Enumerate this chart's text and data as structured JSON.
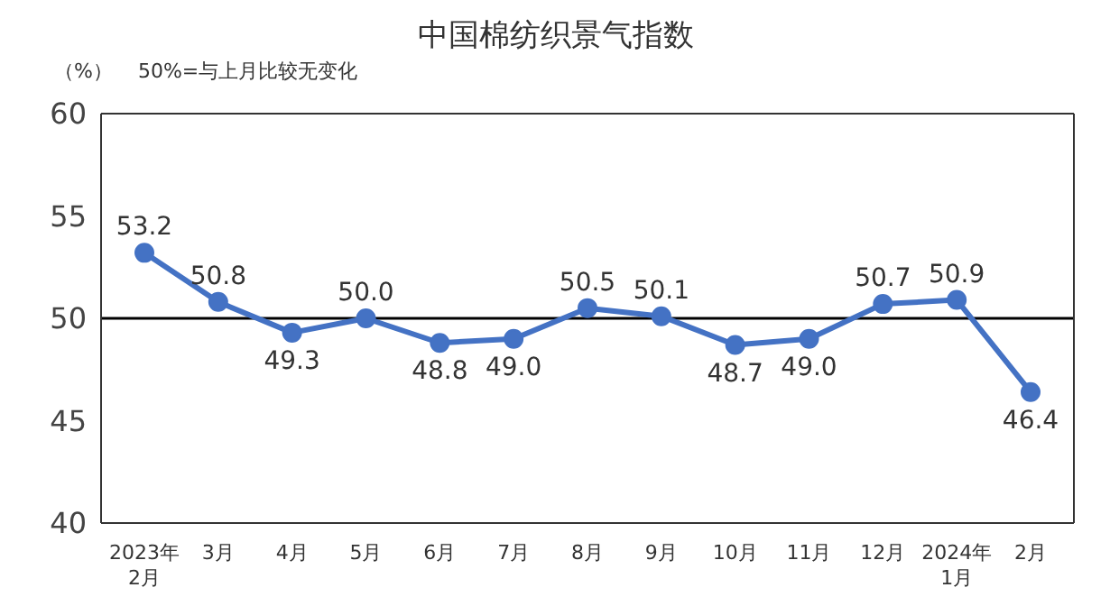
{
  "chart_data": {
    "type": "line",
    "title": "中国棉纺织景气指数",
    "ylabel": "（%）",
    "annotations": [
      "50%=与上月比较无变化"
    ],
    "categories": [
      "2023年\n2月",
      "3月",
      "4月",
      "5月",
      "6月",
      "7月",
      "8月",
      "9月",
      "10月",
      "11月",
      "12月",
      "2024年\n1月",
      "2月"
    ],
    "series": [
      {
        "color": "#4472c4",
        "values": [
          53.2,
          50.8,
          49.3,
          50.0,
          48.8,
          49.0,
          50.5,
          50.1,
          48.7,
          49.0,
          50.7,
          50.9,
          46.4
        ],
        "value_labels": [
          "53.2",
          "50.8",
          "49.3",
          "50.0",
          "48.8",
          "49.0",
          "50.5",
          "50.1",
          "48.7",
          "49.0",
          "50.7",
          "50.9",
          "46.4"
        ]
      }
    ],
    "ylim": [
      40,
      60
    ],
    "yticks": [
      40,
      45,
      50,
      55,
      60
    ],
    "ref_lines": [
      {
        "axis": "y",
        "value": 50,
        "color": "#000000"
      }
    ],
    "marker": "circle",
    "line_style": "solid",
    "grid": false
  }
}
